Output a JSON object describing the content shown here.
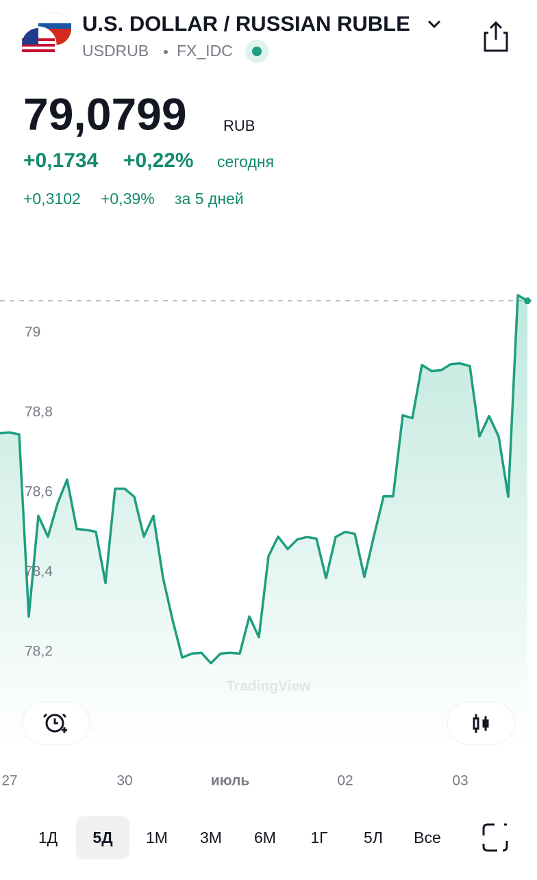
{
  "header": {
    "title": "U.S. DOLLAR / RUSSIAN RUBLE",
    "symbol": "USDRUB",
    "exchange": "FX_IDC"
  },
  "quote": {
    "price": "79,0799",
    "currency": "RUB",
    "change_today": "+0,1734",
    "change_today_pct": "+0,22%",
    "today_label": "сегодня",
    "change_5d": "+0,3102",
    "change_5d_pct": "+0,39%",
    "period_label": "за 5 дней"
  },
  "chart_data": {
    "type": "line",
    "watermark": "TradingView",
    "x": [
      0,
      1,
      2,
      3,
      4,
      5,
      6,
      7,
      8,
      9,
      10,
      11,
      12,
      13,
      14,
      15,
      16,
      17,
      18,
      19,
      20,
      21,
      22,
      23,
      24,
      25,
      26,
      27,
      28,
      29,
      30,
      31,
      32,
      33,
      34,
      35,
      36,
      37,
      38,
      39,
      40,
      41,
      42,
      43,
      44,
      45,
      46,
      47,
      48,
      49,
      50,
      51,
      52,
      53,
      54,
      55
    ],
    "series": [
      {
        "name": "USDRUB",
        "color": "#1f9e80",
        "values": [
          78.748,
          78.75,
          78.745,
          78.289,
          78.541,
          78.489,
          78.572,
          78.632,
          78.508,
          78.506,
          78.501,
          78.373,
          78.609,
          78.609,
          78.589,
          78.489,
          78.541,
          78.386,
          78.28,
          78.186,
          78.196,
          78.198,
          78.172,
          78.196,
          78.198,
          78.196,
          78.289,
          78.237,
          78.44,
          78.489,
          78.458,
          78.482,
          78.488,
          78.484,
          78.385,
          78.488,
          78.501,
          78.496,
          78.388,
          78.491,
          78.59,
          78.59,
          78.793,
          78.786,
          78.919,
          78.904,
          78.906,
          78.921,
          78.923,
          78.916,
          78.74,
          78.791,
          78.74,
          78.589,
          79.094,
          79.0799
        ]
      }
    ],
    "xlim": [
      0,
      55
    ],
    "xticks": [
      {
        "value": 1,
        "label": "27"
      },
      {
        "value": 13,
        "label": "30"
      },
      {
        "value": 24,
        "label": "июль"
      },
      {
        "value": 36,
        "label": "02"
      },
      {
        "value": 48,
        "label": "03"
      }
    ],
    "ylim": [
      78.08,
      79.13
    ],
    "yticks": [
      {
        "value": 78.2,
        "label": "78,2"
      },
      {
        "value": 78.4,
        "label": "78,4"
      },
      {
        "value": 78.6,
        "label": "78,6"
      },
      {
        "value": 78.8,
        "label": "78,8"
      },
      79
    ],
    "grid": false
  },
  "timeframes": [
    "1Д",
    "5Д",
    "1М",
    "3М",
    "6М",
    "1Г",
    "5Л",
    "Все"
  ]
}
